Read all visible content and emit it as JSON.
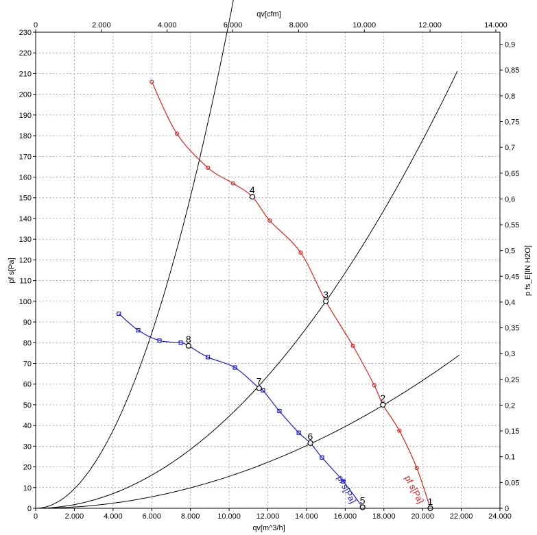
{
  "chart_data": {
    "type": "line",
    "x_bottom": {
      "label": "qv[m^3/h]",
      "range": [
        0,
        24000
      ],
      "ticks": [
        "0",
        "2.000",
        "4.000",
        "6.000",
        "8.000",
        "10.000",
        "12.000",
        "14.000",
        "16.000",
        "18.000",
        "20.000",
        "22.000",
        "24.000"
      ]
    },
    "x_top": {
      "label": "qv[cfm]",
      "range": [
        0,
        14126
      ],
      "ticks": [
        "0",
        "2.000",
        "4.000",
        "6.000",
        "8.000",
        "10.000",
        "12.000",
        "14.000"
      ]
    },
    "y_left": {
      "label": "pf s[Pa]",
      "range": [
        0,
        230
      ],
      "ticks": [
        "0",
        "10",
        "20",
        "30",
        "40",
        "50",
        "60",
        "70",
        "80",
        "90",
        "100",
        "110",
        "120",
        "130",
        "140",
        "150",
        "160",
        "170",
        "180",
        "190",
        "200",
        "210",
        "220",
        "230"
      ]
    },
    "y_right": {
      "label": "p fs_E[IN H2O]",
      "range": [
        0,
        0.9234
      ],
      "ticks": [
        "0",
        "0,05",
        "0,1",
        "0,15",
        "0,2",
        "0,25",
        "0,3",
        "0,35",
        "0,4",
        "0,45",
        "0,5",
        "0,55",
        "0,6",
        "0,65",
        "0,7",
        "0,75",
        "0,8",
        "0,85",
        "0,9"
      ]
    },
    "grid": true,
    "series": [
      {
        "name": "pf s[Pa]",
        "color": "#e0201c",
        "marker": "circle",
        "label_pos": [
          19800,
          2
        ],
        "points": [
          [
            6000,
            206
          ],
          [
            7300,
            181
          ],
          [
            8900,
            164.5
          ],
          [
            10200,
            157
          ],
          [
            11200,
            150.5
          ],
          [
            12100,
            139
          ],
          [
            13700,
            123.5
          ],
          [
            15000,
            100
          ],
          [
            16400,
            78.5
          ],
          [
            17500,
            59.5
          ],
          [
            17950,
            50
          ],
          [
            18800,
            37.5
          ],
          [
            19700,
            19.5
          ],
          [
            20400,
            0
          ]
        ]
      },
      {
        "name": "pf s[Pa]",
        "color": "#1a1ad6",
        "marker": "square",
        "label_pos": [
          16300,
          2
        ],
        "points": [
          [
            4300,
            94
          ],
          [
            5300,
            86
          ],
          [
            6400,
            81
          ],
          [
            7500,
            80
          ],
          [
            7900,
            78.5
          ],
          [
            8900,
            73
          ],
          [
            10300,
            68
          ],
          [
            11550,
            58
          ],
          [
            11750,
            57
          ],
          [
            12600,
            47
          ],
          [
            13600,
            36.5
          ],
          [
            14200,
            31.5
          ],
          [
            14800,
            24.5
          ],
          [
            15900,
            13
          ],
          [
            16900,
            0.5
          ]
        ]
      }
    ],
    "system_curves": [
      {
        "color": "#000000",
        "k": 2.3507e-06,
        "x_end": 13100
      },
      {
        "color": "#000000",
        "k": 4.4444e-07,
        "x_end": 21800
      },
      {
        "color": "#000000",
        "k": 1.5432e-07,
        "x_end": 21900
      }
    ],
    "operating_points": [
      {
        "label": "1",
        "x": 20400,
        "y": 0
      },
      {
        "label": "2",
        "x": 17950,
        "y": 50
      },
      {
        "label": "3",
        "x": 15000,
        "y": 100
      },
      {
        "label": "4",
        "x": 11200,
        "y": 150.5
      },
      {
        "label": "5",
        "x": 16900,
        "y": 0.5
      },
      {
        "label": "6",
        "x": 14200,
        "y": 31.5
      },
      {
        "label": "7",
        "x": 11550,
        "y": 58
      },
      {
        "label": "8",
        "x": 7900,
        "y": 78.5
      }
    ]
  }
}
